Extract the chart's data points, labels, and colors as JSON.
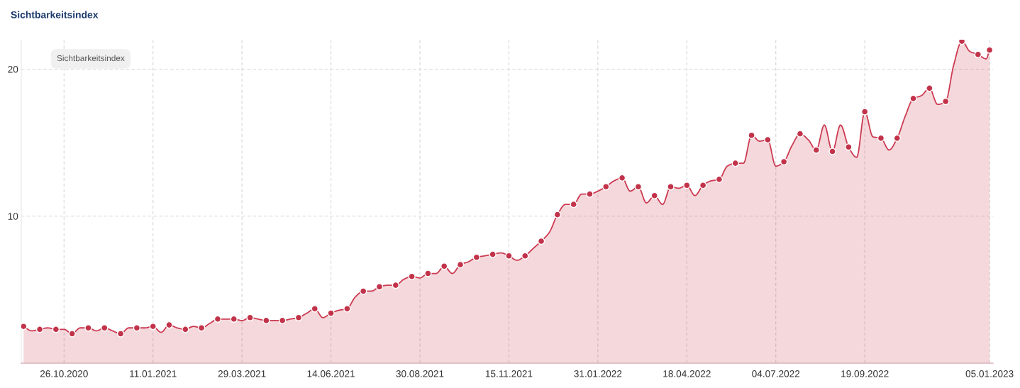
{
  "chart_data": {
    "type": "area",
    "title": "Sichtbarkeitsindex",
    "annotations": [
      "Sichtbarkeitsindex"
    ],
    "xlim": [
      "2020-09-19",
      "2023-01-08"
    ],
    "xticks": [
      {
        "value": "2020-10-26",
        "label": "26.10.2020"
      },
      {
        "value": "2021-01-11",
        "label": "11.01.2021"
      },
      {
        "value": "2021-03-29",
        "label": "29.03.2021"
      },
      {
        "value": "2021-06-14",
        "label": "14.06.2021"
      },
      {
        "value": "2021-08-30",
        "label": "30.08.2021"
      },
      {
        "value": "2021-11-15",
        "label": "15.11.2021"
      },
      {
        "value": "2022-01-31",
        "label": "31.01.2022"
      },
      {
        "value": "2022-04-18",
        "label": "18.04.2022"
      },
      {
        "value": "2022-07-04",
        "label": "04.07.2022"
      },
      {
        "value": "2022-09-19",
        "label": "19.09.2022"
      },
      {
        "value": "2023-01-05",
        "label": "05.01.2023"
      }
    ],
    "ylim": [
      0,
      22
    ],
    "yticks": [
      10,
      20
    ],
    "grid": true,
    "x": [
      "2020-09-21",
      "2020-09-28",
      "2020-10-05",
      "2020-10-12",
      "2020-10-19",
      "2020-10-26",
      "2020-11-02",
      "2020-11-09",
      "2020-11-16",
      "2020-11-23",
      "2020-11-30",
      "2020-12-07",
      "2020-12-14",
      "2020-12-21",
      "2020-12-28",
      "2021-01-04",
      "2021-01-11",
      "2021-01-18",
      "2021-01-25",
      "2021-02-01",
      "2021-02-08",
      "2021-02-15",
      "2021-02-22",
      "2021-03-01",
      "2021-03-08",
      "2021-03-15",
      "2021-03-22",
      "2021-03-29",
      "2021-04-05",
      "2021-04-12",
      "2021-04-19",
      "2021-04-26",
      "2021-05-03",
      "2021-05-10",
      "2021-05-17",
      "2021-05-24",
      "2021-05-31",
      "2021-06-07",
      "2021-06-14",
      "2021-06-21",
      "2021-06-28",
      "2021-07-05",
      "2021-07-12",
      "2021-07-19",
      "2021-07-26",
      "2021-08-02",
      "2021-08-09",
      "2021-08-16",
      "2021-08-23",
      "2021-08-30",
      "2021-09-06",
      "2021-09-13",
      "2021-09-20",
      "2021-09-27",
      "2021-10-04",
      "2021-10-11",
      "2021-10-18",
      "2021-10-25",
      "2021-11-01",
      "2021-11-08",
      "2021-11-15",
      "2021-11-22",
      "2021-11-29",
      "2021-12-06",
      "2021-12-13",
      "2021-12-20",
      "2021-12-27",
      "2022-01-03",
      "2022-01-10",
      "2022-01-17",
      "2022-01-24",
      "2022-01-31",
      "2022-02-07",
      "2022-02-14",
      "2022-02-21",
      "2022-02-28",
      "2022-03-07",
      "2022-03-14",
      "2022-03-21",
      "2022-03-28",
      "2022-04-04",
      "2022-04-11",
      "2022-04-18",
      "2022-04-25",
      "2022-05-02",
      "2022-05-09",
      "2022-05-16",
      "2022-05-23",
      "2022-05-30",
      "2022-06-06",
      "2022-06-13",
      "2022-06-20",
      "2022-06-27",
      "2022-07-04",
      "2022-07-11",
      "2022-07-18",
      "2022-07-25",
      "2022-08-01",
      "2022-08-08",
      "2022-08-15",
      "2022-08-22",
      "2022-08-29",
      "2022-09-05",
      "2022-09-12",
      "2022-09-19",
      "2022-09-26",
      "2022-10-03",
      "2022-10-10",
      "2022-10-17",
      "2022-10-24",
      "2022-10-31",
      "2022-11-07",
      "2022-11-14",
      "2022-11-21",
      "2022-11-28",
      "2022-12-05",
      "2022-12-12",
      "2022-12-19",
      "2022-12-26",
      "2023-01-02",
      "2023-01-05"
    ],
    "series": [
      {
        "type": "area",
        "color": "#cc3b52",
        "line_style": "solid",
        "values": [
          2.5,
          2.2,
          2.3,
          2.4,
          2.3,
          2.3,
          2.0,
          2.4,
          2.4,
          2.2,
          2.4,
          2.2,
          2.0,
          2.4,
          2.4,
          2.4,
          2.5,
          2.1,
          2.6,
          2.4,
          2.3,
          2.5,
          2.4,
          2.7,
          3.0,
          3.0,
          3.0,
          2.9,
          3.1,
          3.0,
          2.9,
          2.9,
          2.9,
          3.0,
          3.1,
          3.4,
          3.7,
          3.1,
          3.4,
          3.6,
          3.7,
          4.5,
          4.9,
          4.9,
          5.2,
          5.3,
          5.3,
          5.7,
          5.9,
          5.8,
          6.1,
          6.1,
          6.6,
          6.1,
          6.7,
          6.9,
          7.2,
          7.3,
          7.4,
          7.5,
          7.3,
          7.0,
          7.3,
          7.8,
          8.3,
          8.9,
          10.1,
          10.8,
          10.8,
          11.5,
          11.5,
          11.7,
          12.0,
          12.4,
          12.6,
          11.7,
          12.0,
          10.9,
          11.4,
          10.8,
          12.0,
          11.9,
          12.1,
          11.4,
          12.1,
          12.4,
          12.5,
          13.4,
          13.6,
          13.6,
          15.5,
          15.1,
          15.2,
          13.4,
          13.7,
          14.8,
          15.6,
          15.2,
          14.5,
          16.2,
          14.4,
          16.2,
          14.7,
          14.0,
          17.1,
          15.4,
          15.3,
          14.5,
          15.3,
          16.8,
          18.0,
          18.2,
          18.7,
          17.6,
          17.8,
          20.3,
          21.9,
          21.2,
          21.0,
          20.7,
          21.3
        ]
      },
      {
        "type": "scatter",
        "color": "#c2334a",
        "marker": "circle",
        "x": [
          "2020-09-21",
          "2020-10-05",
          "2020-10-19",
          "2020-11-02",
          "2020-11-16",
          "2020-11-30",
          "2020-12-14",
          "2020-12-28",
          "2021-01-11",
          "2021-01-25",
          "2021-02-08",
          "2021-02-22",
          "2021-03-08",
          "2021-03-22",
          "2021-04-05",
          "2021-04-19",
          "2021-05-03",
          "2021-05-17",
          "2021-05-31",
          "2021-06-14",
          "2021-06-28",
          "2021-07-12",
          "2021-07-26",
          "2021-08-09",
          "2021-08-23",
          "2021-09-06",
          "2021-09-20",
          "2021-10-04",
          "2021-10-18",
          "2021-11-01",
          "2021-11-15",
          "2021-11-29",
          "2021-12-13",
          "2021-12-27",
          "2022-01-10",
          "2022-01-24",
          "2022-02-07",
          "2022-02-21",
          "2022-03-07",
          "2022-03-21",
          "2022-04-04",
          "2022-04-18",
          "2022-05-02",
          "2022-05-16",
          "2022-05-30",
          "2022-06-13",
          "2022-06-27",
          "2022-07-11",
          "2022-07-25",
          "2022-08-08",
          "2022-08-22",
          "2022-09-05",
          "2022-09-19",
          "2022-10-03",
          "2022-10-17",
          "2022-10-31",
          "2022-11-14",
          "2022-11-28",
          "2022-12-12",
          "2022-12-26",
          "2023-01-05"
        ],
        "values": [
          2.5,
          2.3,
          2.3,
          2.0,
          2.4,
          2.4,
          2.0,
          2.4,
          2.5,
          2.6,
          2.3,
          2.4,
          3.0,
          3.0,
          3.1,
          2.9,
          2.9,
          3.1,
          3.7,
          3.4,
          3.7,
          4.9,
          5.2,
          5.3,
          5.9,
          6.1,
          6.6,
          6.7,
          7.2,
          7.4,
          7.3,
          7.3,
          8.3,
          10.1,
          10.8,
          11.5,
          12.0,
          12.6,
          12.0,
          11.4,
          12.0,
          12.1,
          12.1,
          12.5,
          13.6,
          15.5,
          15.2,
          13.7,
          15.6,
          14.5,
          14.4,
          14.7,
          17.1,
          15.3,
          15.3,
          18.0,
          18.7,
          17.8,
          21.9,
          21.0,
          21.3
        ]
      }
    ]
  }
}
